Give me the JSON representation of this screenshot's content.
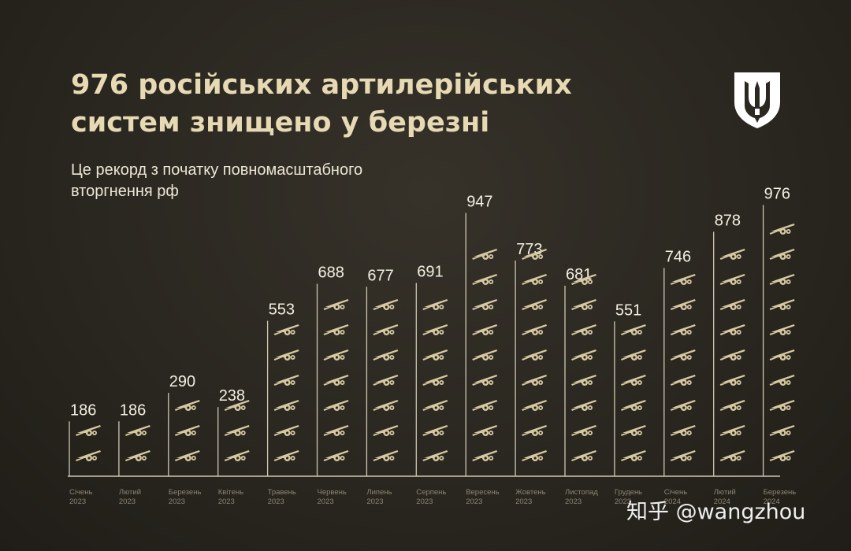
{
  "header": {
    "title_lines": [
      "976 російських артилерійських",
      "систем знищено у березні"
    ],
    "subtitle_lines": [
      "Це рекорд з початку повномасштабного",
      "вторгнення рф"
    ]
  },
  "emblem": {
    "icon": "trident-emblem-icon",
    "color": "#ffffff"
  },
  "watermark": {
    "text": "知乎 @wangzhou"
  },
  "colors": {
    "background": "#2b2822",
    "title": "#e6d9b4",
    "value_label": "#f4efe2",
    "icon": "#d6c8a0",
    "axis": "#cfc7b2",
    "month_label": "#8c8574"
  },
  "chart_data": {
    "type": "bar",
    "categories": [
      [
        "Січень",
        "2023"
      ],
      [
        "Лютий",
        "2023"
      ],
      [
        "Березень",
        "2023"
      ],
      [
        "Квітень",
        "2023"
      ],
      [
        "Травень",
        "2023"
      ],
      [
        "Червень",
        "2023"
      ],
      [
        "Липень",
        "2023"
      ],
      [
        "Серпень",
        "2023"
      ],
      [
        "Вересень",
        "2023"
      ],
      [
        "Жовтень",
        "2023"
      ],
      [
        "Листопад",
        "2023"
      ],
      [
        "Грудень",
        "2023"
      ],
      [
        "Січень",
        "2024"
      ],
      [
        "Лютий",
        "2024"
      ],
      [
        "Березень",
        "2024"
      ]
    ],
    "values": [
      186,
      186,
      290,
      238,
      553,
      688,
      677,
      691,
      947,
      773,
      681,
      551,
      746,
      878,
      976
    ],
    "icon_counts": [
      2,
      2,
      3,
      3,
      6,
      7,
      7,
      7,
      9,
      9,
      8,
      6,
      8,
      9,
      10
    ],
    "bar_icon": "artillery-howitzer-icon",
    "ylim": [
      0,
      1000
    ],
    "grid": false,
    "legend": "none",
    "title": "976 російських артилерійських систем знищено у березні",
    "xlabel": "",
    "ylabel": ""
  }
}
